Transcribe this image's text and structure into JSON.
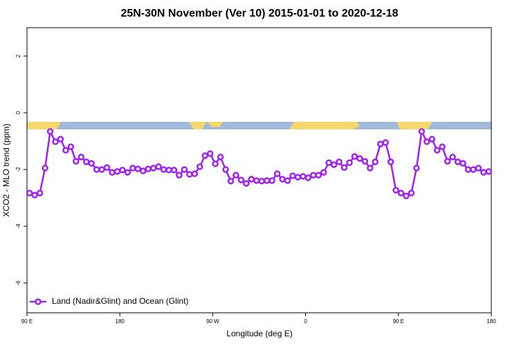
{
  "chart_data": {
    "type": "line",
    "title": "25N-30N November (Ver 10)   2015-01-01 to 2020-12-18",
    "x_label": "Longitude (deg E)",
    "y_label": "XCO2 - MLO trend (ppm)",
    "xlim": [
      90,
      540
    ],
    "xticks": [
      {
        "value": 90,
        "label": "90 E"
      },
      180,
      {
        "value": 270,
        "label": "90 W"
      },
      {
        "value": 360,
        "label": "0"
      },
      {
        "value": 450,
        "label": "90 E"
      },
      {
        "value": 540,
        "label": "180"
      }
    ],
    "ylim": [
      -7.05,
      3
    ],
    "yticks": [
      2,
      0,
      -2,
      -4,
      -6
    ],
    "legend": "bottom-left",
    "x": [
      92.5,
      97.5,
      102.5,
      107.5,
      112.5,
      117.5,
      122.5,
      127.5,
      132.5,
      137.5,
      142.5,
      147.5,
      152.5,
      157.5,
      162.5,
      167.5,
      172.5,
      177.5,
      182.5,
      187.5,
      192.5,
      197.5,
      202.5,
      207.5,
      212.5,
      217.5,
      222.5,
      227.5,
      232.5,
      237.5,
      242.5,
      247.5,
      252.5,
      257.5,
      262.5,
      267.5,
      272.5,
      277.5,
      282.5,
      287.5,
      292.5,
      297.5,
      302.5,
      307.5,
      312.5,
      317.5,
      322.5,
      327.5,
      332.5,
      337.5,
      342.5,
      347.5,
      352.5,
      357.5,
      362.5,
      367.5,
      372.5,
      377.5,
      382.5,
      387.5,
      392.5,
      397.5,
      402.5,
      407.5,
      412.5,
      417.5,
      422.5,
      427.5,
      432.5,
      437.5,
      442.5,
      447.5,
      452.5,
      457.5,
      462.5,
      467.5,
      472.5,
      477.5,
      482.5,
      487.5,
      492.5,
      497.5,
      502.5,
      507.5,
      512.5,
      517.5,
      522.5,
      527.5,
      532.5,
      537.5
    ],
    "series": [
      {
        "name": "Land (Nadir&Glint) and Ocean (Glint)",
        "color": "#a020f0",
        "values": [
          -2.83,
          -2.9,
          -2.83,
          -1.95,
          -0.66,
          -1.02,
          -0.93,
          -1.32,
          -1.2,
          -1.71,
          -1.56,
          -1.73,
          -1.78,
          -2.0,
          -2.0,
          -1.93,
          -2.1,
          -2.07,
          -2.02,
          -2.1,
          -1.95,
          -1.98,
          -2.05,
          -1.98,
          -1.95,
          -1.9,
          -2.0,
          -2.02,
          -2.02,
          -2.2,
          -2.0,
          -2.17,
          -2.15,
          -1.9,
          -1.51,
          -1.44,
          -1.8,
          -1.56,
          -2.0,
          -2.41,
          -2.2,
          -2.37,
          -2.49,
          -2.34,
          -2.39,
          -2.41,
          -2.39,
          -2.39,
          -2.15,
          -2.34,
          -2.39,
          -2.22,
          -2.27,
          -2.24,
          -2.29,
          -2.2,
          -2.2,
          -2.1,
          -1.76,
          -1.83,
          -1.73,
          -1.93,
          -1.76,
          -1.54,
          -1.61,
          -1.71,
          -1.95,
          -1.73,
          -1.1,
          -1.05,
          -1.73,
          -2.73,
          -2.83,
          -2.93,
          -2.83,
          -1.95,
          -0.66,
          -1.02,
          -0.93,
          -1.32,
          -1.2,
          -1.71,
          -1.56,
          -1.73,
          -1.78,
          -2.0,
          -2.0,
          -1.95,
          -2.1,
          -2.07
        ]
      }
    ]
  }
}
